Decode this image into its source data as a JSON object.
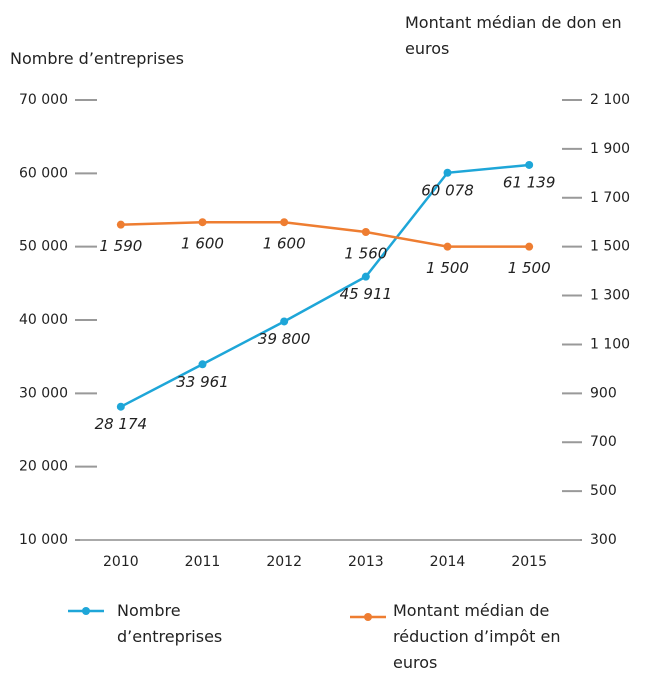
{
  "chart_data": {
    "type": "line",
    "y_label": "Nombre d’entreprises",
    "y2_label": "Montant médian de don en euros",
    "categories": [
      "2010",
      "2011",
      "2012",
      "2013",
      "2014",
      "2015"
    ],
    "series": [
      {
        "name": "Nombre d’entreprises",
        "color": "#1ea6d8",
        "values": [
          28174,
          33961,
          39800,
          45911,
          60078,
          61139
        ],
        "value_labels": [
          "28 174",
          "33 961",
          "39 800",
          "45 911",
          "60 078",
          "61 139"
        ]
      },
      {
        "name": "Montant médian de réduction d’impôt en euros",
        "color": "#ee7d31",
        "axis": "y2",
        "values": [
          1590,
          1600,
          1600,
          1560,
          1500,
          1500
        ],
        "value_labels": [
          "1 590",
          "1 600",
          "1 600",
          "1 560",
          "1 500",
          "1 500"
        ]
      }
    ],
    "ylim": [
      10000,
      70000
    ],
    "yticks": [
      {
        "value": 10000,
        "label": "10 000"
      },
      {
        "value": 20000,
        "label": "20 000"
      },
      {
        "value": 30000,
        "label": "30 000"
      },
      {
        "value": 40000,
        "label": "40 000"
      },
      {
        "value": 50000,
        "label": "50 000"
      },
      {
        "value": 60000,
        "label": "60 000"
      },
      {
        "value": 70000,
        "label": "70 000"
      }
    ],
    "y2lim": [
      300,
      2100
    ],
    "y2ticks": [
      300,
      500,
      700,
      900,
      {
        "value": 1100,
        "label": "1 100"
      },
      {
        "value": 1300,
        "label": "1 300"
      },
      {
        "value": 1500,
        "label": "1 500"
      },
      {
        "value": 1700,
        "label": "1 700"
      },
      {
        "value": 1900,
        "label": "1 900"
      },
      {
        "value": 2100,
        "label": "2 100"
      }
    ]
  }
}
